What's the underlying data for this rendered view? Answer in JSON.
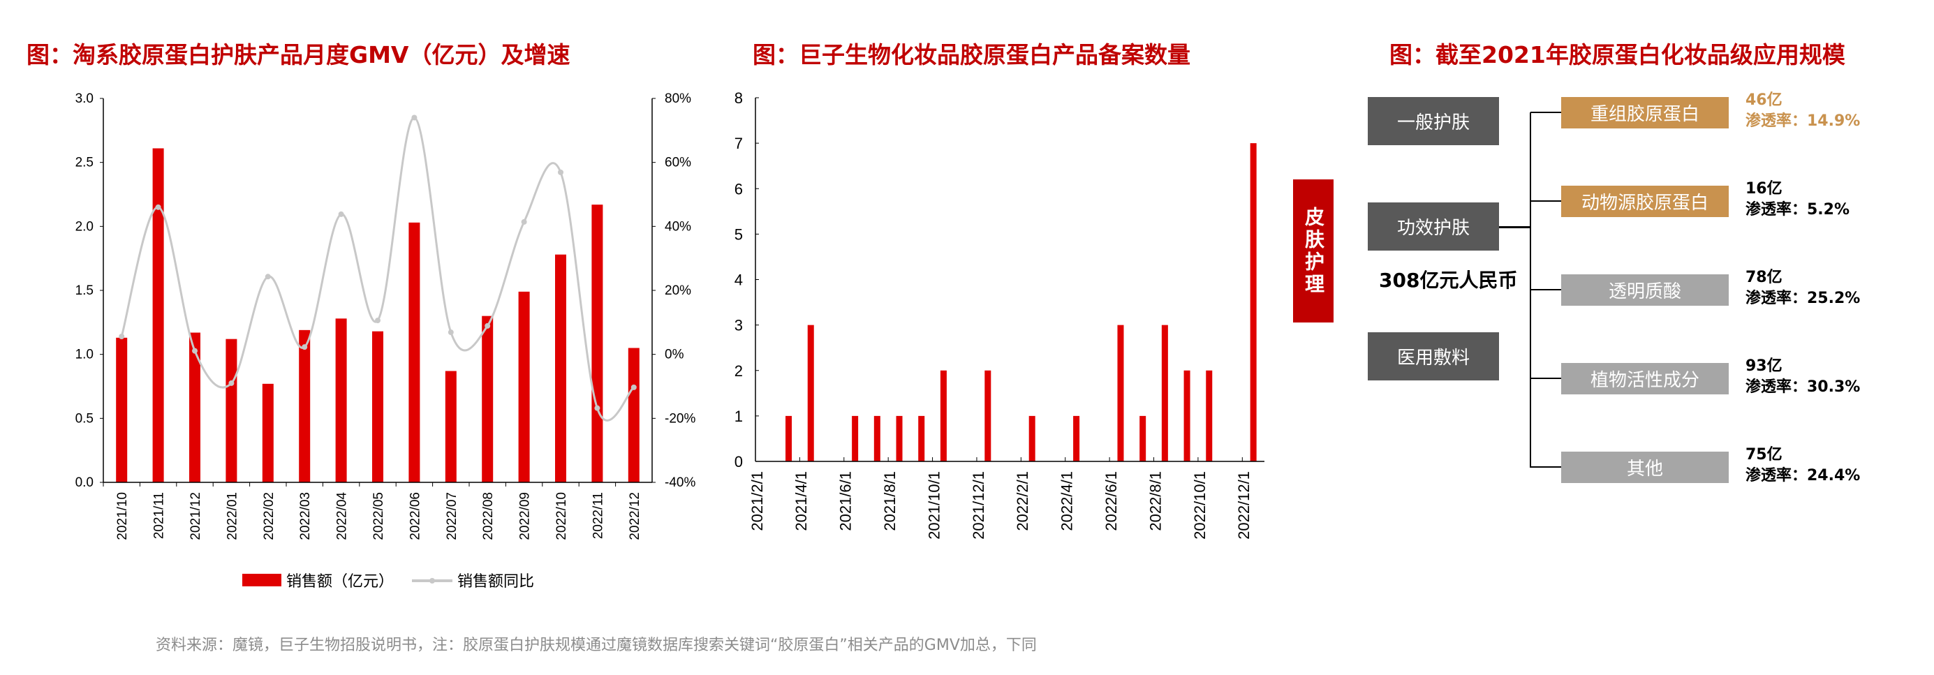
{
  "titles": {
    "chart1": "图：淘系胶原蛋白护肤产品月度GMV（亿元）及增速",
    "chart2": "图：巨子生物化妆品胶原蛋白产品备案数量",
    "diagram": "图：截至2021年胶原蛋白化妆品级应用规模"
  },
  "chart_data": [
    {
      "type": "bar+line",
      "categories": [
        "2021/10",
        "2021/11",
        "2021/12",
        "2022/01",
        "2022/02",
        "2022/03",
        "2022/04",
        "2022/05",
        "2022/06",
        "2022/07",
        "2022/08",
        "2022/09",
        "2022/10",
        "2022/11",
        "2022/12"
      ],
      "series": [
        {
          "name": "销售额（亿元）",
          "type": "bar",
          "axis": "left",
          "color": "#e00000",
          "values": [
            1.13,
            2.61,
            1.17,
            1.12,
            0.77,
            1.19,
            1.28,
            1.18,
            2.03,
            0.87,
            1.3,
            1.49,
            1.78,
            2.17,
            1.05
          ]
        },
        {
          "name": "销售额同比",
          "type": "line",
          "axis": "right",
          "color": "#c8c8c8",
          "smooth": true,
          "values": [
            5.6,
            46.0,
            1.1,
            -9.0,
            24.3,
            2.3,
            43.8,
            10.6,
            74.0,
            6.9,
            8.9,
            41.4,
            56.9,
            -16.8,
            -10.3
          ]
        }
      ],
      "ylim_left": [
        0,
        3.0
      ],
      "yticks_left": [
        "0.0",
        "0.5",
        "1.0",
        "1.5",
        "2.0",
        "2.5",
        "3.0"
      ],
      "ylim_right": [
        -40,
        80
      ],
      "yticks_right": [
        "-40%",
        "-20%",
        "0%",
        "20%",
        "40%",
        "60%",
        "80%"
      ],
      "legend": "bottom",
      "grid": false
    },
    {
      "type": "bar",
      "categories": [
        "2021/2/1",
        "2021/3/1",
        "2021/4/1",
        "2021/5/1",
        "2021/6/1",
        "2021/7/1",
        "2021/8/1",
        "2021/9/1",
        "2021/10/1",
        "2021/11/1",
        "2021/12/1",
        "2022/1/1",
        "2022/2/1",
        "2022/3/1",
        "2022/4/1",
        "2022/5/1",
        "2022/6/1",
        "2022/7/1",
        "2022/8/1",
        "2022/9/1",
        "2022/10/1",
        "2022/11/1",
        "2022/12/1"
      ],
      "values": [
        0,
        1,
        3,
        0,
        1,
        1,
        1,
        1,
        2,
        0,
        2,
        0,
        1,
        0,
        1,
        0,
        3,
        1,
        3,
        2,
        2,
        0,
        7
      ],
      "tick_labels": [
        "2021/2/1",
        "2021/4/1",
        "2021/6/1",
        "2021/8/1",
        "2021/10/1",
        "2021/12/1",
        "2022/2/1",
        "2022/4/1",
        "2022/6/1",
        "2022/8/1",
        "2022/10/1",
        "2022/12/1"
      ],
      "ylim": [
        0,
        8
      ],
      "yticks": [
        "0",
        "1",
        "2",
        "3",
        "4",
        "5",
        "6",
        "7",
        "8"
      ],
      "color": "#e00000",
      "grid": false
    }
  ],
  "diagram": {
    "root": "皮肤护理",
    "categories": [
      "一般护肤",
      "功效护肤",
      "医用敷料"
    ],
    "total": "308亿元人民币",
    "branches": [
      {
        "label": "重组胶原蛋白",
        "amount": "46亿",
        "rate": "渗透率：14.9%",
        "style": "gold",
        "highlight": true
      },
      {
        "label": "动物源胶原蛋白",
        "amount": "16亿",
        "rate": "渗透率：5.2%",
        "style": "gold",
        "highlight": false
      },
      {
        "label": "透明质酸",
        "amount": "78亿",
        "rate": "渗透率：25.2%",
        "style": "grey",
        "highlight": false
      },
      {
        "label": "植物活性成分",
        "amount": "93亿",
        "rate": "渗透率：30.3%",
        "style": "grey",
        "highlight": false
      },
      {
        "label": "其他",
        "amount": "75亿",
        "rate": "渗透率：24.4%",
        "style": "grey",
        "highlight": false
      }
    ],
    "colors": {
      "root": "#c00000",
      "dark": "#595959",
      "gold": "#c9924e",
      "grey": "#a6a6a6",
      "highlight_text": "#c9924e"
    }
  },
  "source": "资料来源：魔镜，巨子生物招股说明书，注：胶原蛋白护肤规模通过魔镜数据库搜索关键词“胶原蛋白”相关产品的GMV加总，下同"
}
